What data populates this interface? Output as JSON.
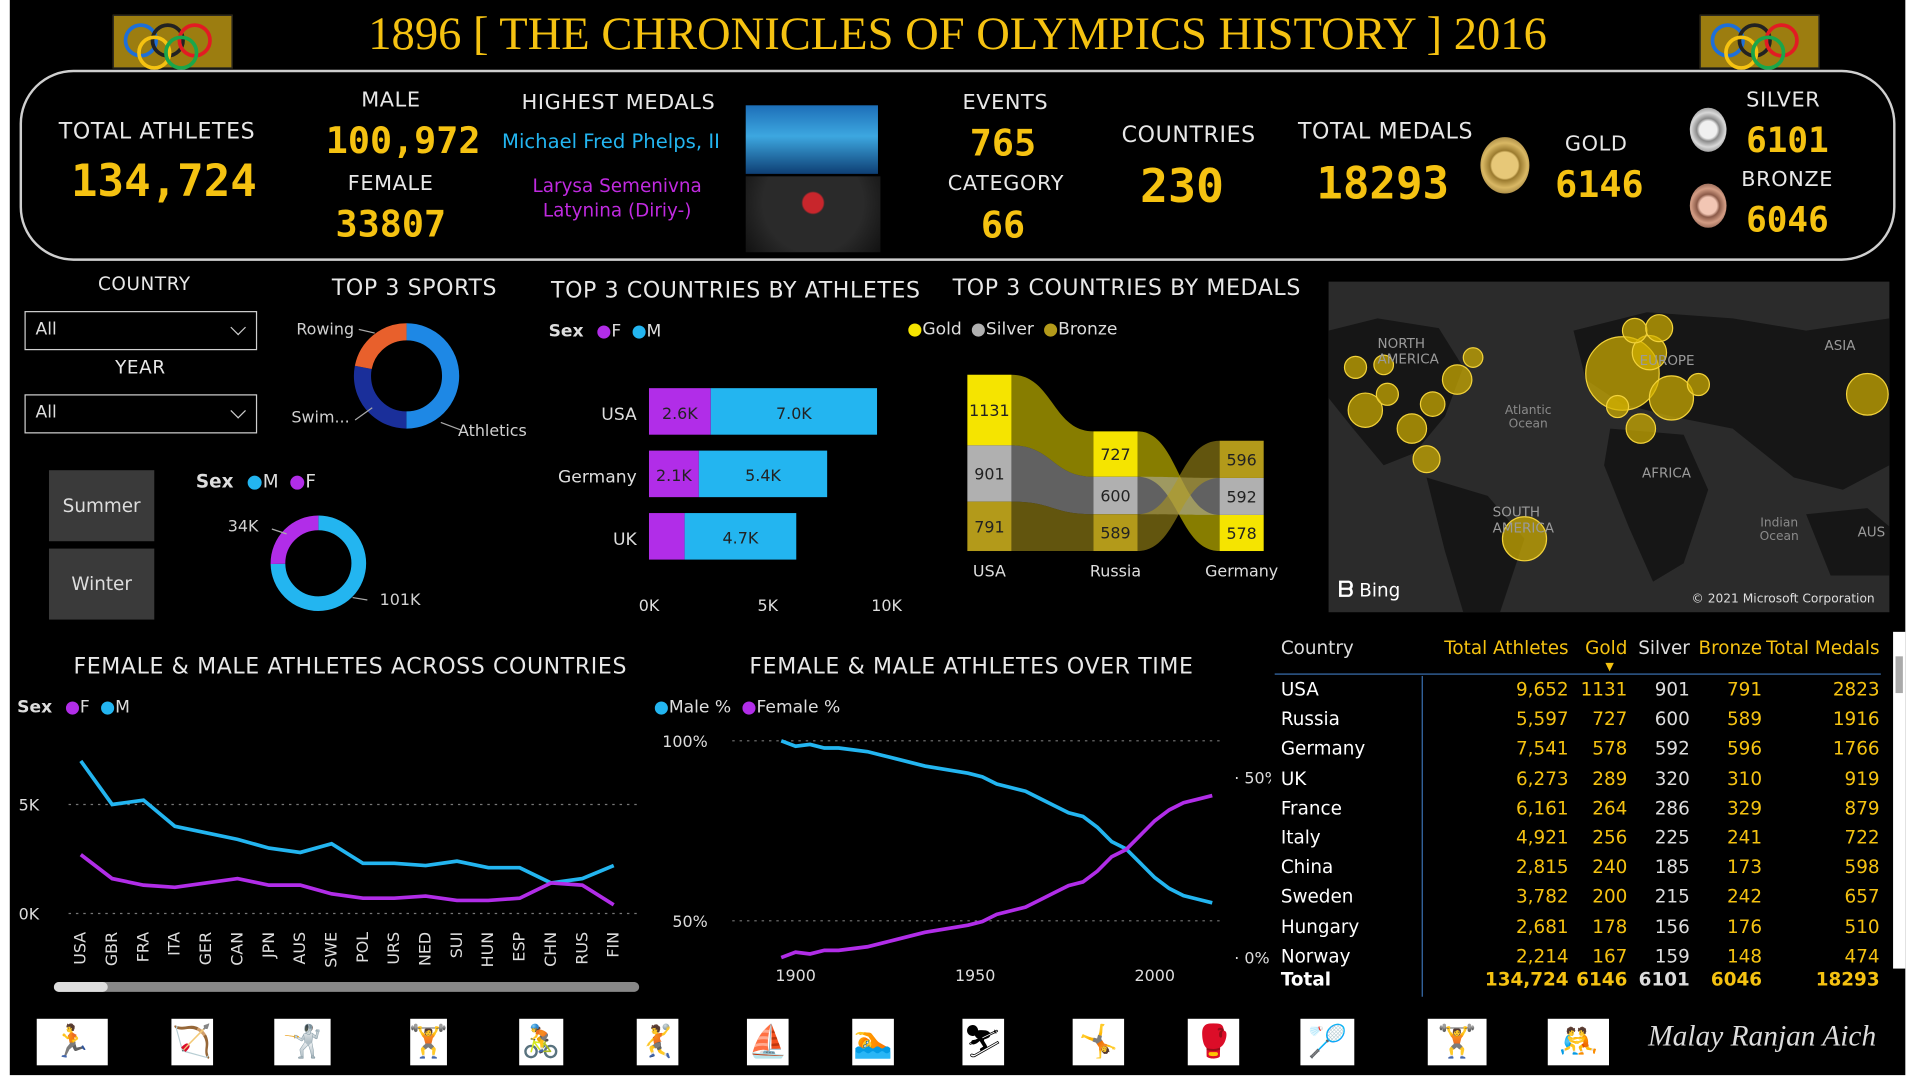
{
  "header": {
    "title": "1896 [ THE CHRONICLES OF OLYMPICS HISTORY ] 2016",
    "author": "Malay Ranjan Aich"
  },
  "kpis": {
    "total_athletes_label": "TOTAL ATHLETES",
    "total_athletes": "134,724",
    "male_label": "MALE",
    "male": "100,972",
    "female_label": "FEMALE",
    "female": "33807",
    "highest_medals_label": "HIGHEST MEDALS",
    "top_male": "Michael Fred Phelps, II",
    "top_female": "Larysa Semenivna Latynina (Diriy-)",
    "events_label": "EVENTS",
    "events": "765",
    "category_label": "CATEGORY",
    "category": "66",
    "countries_label": "COUNTRIES",
    "countries": "230",
    "total_medals_label": "TOTAL MEDALS",
    "total_medals": "18293",
    "gold_label": "GOLD",
    "gold": "6146",
    "silver_label": "SILVER",
    "silver": "6101",
    "bronze_label": "BRONZE",
    "bronze": "6046"
  },
  "filters": {
    "country_label": "COUNTRY",
    "country_value": "All",
    "year_label": "YEAR",
    "year_value": "All",
    "season_buttons": [
      "Summer",
      "Winter"
    ]
  },
  "top_sports": {
    "title": "TOP 3 SPORTS",
    "labels": [
      "Rowing",
      "Swim...",
      "Athletics"
    ],
    "colors": {
      "Athletics": "#1e88e5",
      "Swimming": "#1a2f9a",
      "Rowing": "#e8602c"
    }
  },
  "sex_donut": {
    "legend_title": "Sex",
    "legend": [
      "M",
      "F"
    ],
    "labels": [
      "34K",
      "101K"
    ],
    "colors": {
      "M": "#23b5f0",
      "F": "#b12de8"
    }
  },
  "top_countries_athletes": {
    "title": "TOP 3 COUNTRIES BY ATHLETES",
    "legend_title": "Sex",
    "legend": [
      "F",
      "M"
    ],
    "axis_ticks": [
      "0K",
      "5K",
      "10K"
    ]
  },
  "top_countries_medals": {
    "title": "TOP 3 COUNTRIES BY MEDALS",
    "legend": [
      "Gold",
      "Silver",
      "Bronze"
    ],
    "colors": {
      "Gold": "#f5e400",
      "Silver": "#b0b0b0",
      "Bronze": "#b39a1a"
    }
  },
  "map": {
    "labels": [
      "NORTH AMERICA",
      "EUROPE",
      "ASIA",
      "Atlantic Ocean",
      "AFRICA",
      "SOUTH AMERICA",
      "Indian Ocean",
      "AUS"
    ],
    "bing": "Bing",
    "copyright": "© 2021 Microsoft Corporation"
  },
  "across_countries": {
    "title": "FEMALE & MALE ATHLETES ACROSS COUNTRIES",
    "legend_title": "Sex",
    "legend": [
      "F",
      "M"
    ],
    "y_ticks": [
      "5K",
      "0K"
    ]
  },
  "over_time": {
    "title": "FEMALE & MALE ATHLETES OVER TIME",
    "legend": [
      "Male %",
      "Female %"
    ],
    "left_ticks": [
      "100%",
      "50%"
    ],
    "right_ticks": [
      "50%",
      "0%"
    ],
    "x_ticks": [
      "1900",
      "1950",
      "2000"
    ]
  },
  "table": {
    "headers": [
      "Country",
      "Total Athletes",
      "Gold",
      "Silver",
      "Bronze",
      "Total Medals"
    ],
    "rows": [
      [
        "USA",
        "9,652",
        "1131",
        "901",
        "791",
        "2823"
      ],
      [
        "Russia",
        "5,597",
        "727",
        "600",
        "589",
        "1916"
      ],
      [
        "Germany",
        "7,541",
        "578",
        "592",
        "596",
        "1766"
      ],
      [
        "UK",
        "6,273",
        "289",
        "320",
        "310",
        "919"
      ],
      [
        "France",
        "6,161",
        "264",
        "286",
        "329",
        "879"
      ],
      [
        "Italy",
        "4,921",
        "256",
        "225",
        "241",
        "722"
      ],
      [
        "China",
        "2,815",
        "240",
        "185",
        "173",
        "598"
      ],
      [
        "Sweden",
        "3,782",
        "200",
        "215",
        "242",
        "657"
      ],
      [
        "Hungary",
        "2,681",
        "178",
        "156",
        "176",
        "510"
      ],
      [
        "Norway",
        "2,214",
        "167",
        "159",
        "148",
        "474"
      ]
    ],
    "total": [
      "Total",
      "134,724",
      "6146",
      "6101",
      "6046",
      "18293"
    ]
  },
  "chart_data": [
    {
      "type": "pie",
      "title": "TOP 3 SPORTS",
      "categories": [
        "Athletics",
        "Swimming",
        "Rowing"
      ],
      "values": [
        0.5,
        0.28,
        0.22
      ]
    },
    {
      "type": "pie",
      "title": "",
      "categories": [
        "M",
        "F"
      ],
      "values": [
        101,
        34
      ]
    },
    {
      "type": "bar",
      "title": "TOP 3 COUNTRIES BY ATHLETES",
      "categories": [
        "USA",
        "Germany",
        "UK"
      ],
      "series": [
        {
          "name": "F",
          "values": [
            2.6,
            2.1,
            1.5
          ],
          "labels": [
            "2.6K",
            "2.1K",
            ""
          ]
        },
        {
          "name": "M",
          "values": [
            7.0,
            5.4,
            4.7
          ],
          "labels": [
            "7.0K",
            "5.4K",
            "4.7K"
          ]
        }
      ],
      "xlim": [
        0,
        10
      ]
    },
    {
      "type": "area",
      "title": "TOP 3 COUNTRIES BY MEDALS",
      "categories": [
        "USA",
        "Russia",
        "Germany"
      ],
      "series": [
        {
          "name": "Gold",
          "values": [
            1131,
            727,
            578
          ]
        },
        {
          "name": "Silver",
          "values": [
            901,
            600,
            592
          ]
        },
        {
          "name": "Bronze",
          "values": [
            791,
            589,
            596
          ]
        }
      ]
    },
    {
      "type": "line",
      "title": "FEMALE & MALE ATHLETES ACROSS COUNTRIES",
      "categories": [
        "USA",
        "GBR",
        "FRA",
        "ITA",
        "GER",
        "CAN",
        "JPN",
        "AUS",
        "SWE",
        "POL",
        "URS",
        "NED",
        "SUI",
        "HUN",
        "ESP",
        "CHN",
        "RUS",
        "FIN"
      ],
      "series": [
        {
          "name": "M",
          "values": [
            7.0,
            5.0,
            5.2,
            4.0,
            3.7,
            3.4,
            3.0,
            2.8,
            3.2,
            2.3,
            2.3,
            2.2,
            2.4,
            2.1,
            2.1,
            1.4,
            1.6,
            2.2
          ]
        },
        {
          "name": "F",
          "values": [
            2.7,
            1.6,
            1.3,
            1.2,
            1.4,
            1.6,
            1.3,
            1.3,
            0.9,
            0.7,
            0.7,
            0.8,
            0.6,
            0.6,
            0.7,
            1.4,
            1.3,
            0.4
          ]
        }
      ],
      "ylim": [
        0,
        8
      ]
    },
    {
      "type": "line",
      "title": "FEMALE & MALE ATHLETES OVER TIME",
      "x": [
        1896,
        1900,
        1904,
        1908,
        1912,
        1920,
        1924,
        1928,
        1932,
        1936,
        1948,
        1952,
        1956,
        1960,
        1964,
        1968,
        1972,
        1976,
        1980,
        1984,
        1988,
        1992,
        1996,
        2000,
        2004,
        2008,
        2012,
        2016
      ],
      "series": [
        {
          "name": "Male %",
          "values": [
            100,
            98.5,
            99,
            98,
            98,
            97,
            96,
            95,
            94,
            93,
            91,
            90,
            88,
            87,
            86,
            84,
            82,
            80,
            79,
            76,
            72,
            70,
            66,
            62,
            59,
            57,
            56,
            55
          ]
        },
        {
          "name": "Female %",
          "values": [
            0,
            1.5,
            1,
            2,
            2,
            3,
            4,
            5,
            6,
            7,
            9,
            10,
            12,
            13,
            14,
            16,
            18,
            20,
            21,
            24,
            28,
            30,
            34,
            38,
            41,
            43,
            44,
            45
          ]
        }
      ],
      "ylim_left": [
        50,
        100
      ],
      "ylim_right": [
        0,
        50
      ]
    }
  ]
}
